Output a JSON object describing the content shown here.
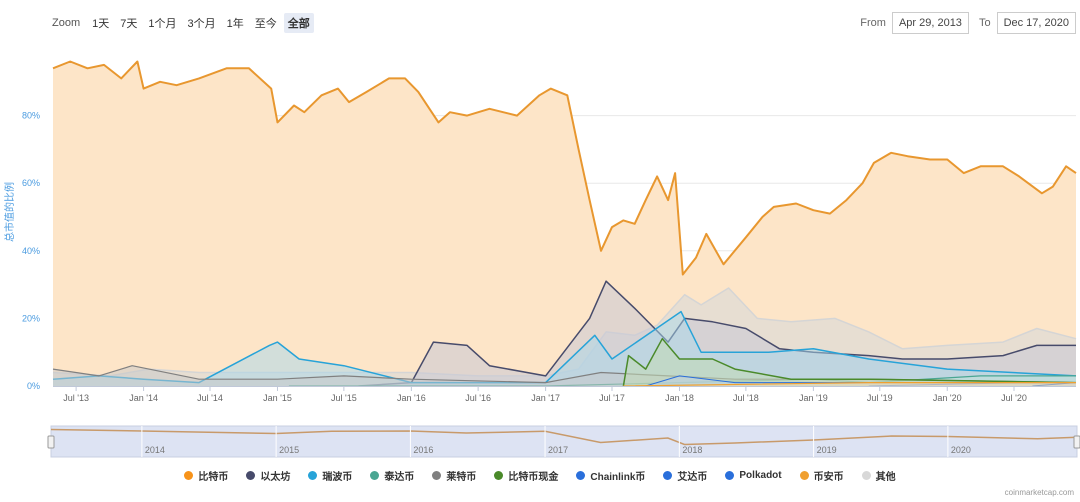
{
  "toolbar": {
    "zoom_label": "Zoom",
    "buttons": [
      "1天",
      "7天",
      "1个月",
      "3个月",
      "1年",
      "至今",
      "全部"
    ],
    "active": "全部",
    "from_label": "From",
    "from_value": "Apr 29, 2013",
    "to_label": "To",
    "to_value": "Dec 17, 2020"
  },
  "credits": "coinmarketcap.com",
  "colors": {
    "bitcoin": "#f7931a",
    "bitcoin_line": "#e8972f",
    "ethereum": "#474b6b",
    "ripple": "#27a3d8",
    "tether": "#4aa692",
    "litecoin": "#808080",
    "bch": "#4a8a2a",
    "chainlink": "#2a6fdb",
    "cardano": "#2a6fdb",
    "polkadot": "#2a6fdb",
    "binance": "#f0a030",
    "others": "#d8d8d8",
    "navigator_bg": "#dde3f3",
    "grid": "#e8e8e8",
    "axis_text": "#666666",
    "y_label": "#4a9be0"
  },
  "chart_data": {
    "type": "area",
    "ylabel": "总市值的比例",
    "ylim": [
      0,
      100
    ],
    "y_ticks": [
      0,
      20,
      40,
      60,
      80
    ],
    "y_tick_labels": [
      "0%",
      "20%",
      "40%",
      "60%",
      "80%"
    ],
    "x_range": [
      "2013-04-29",
      "2020-12-17"
    ],
    "x_tick_labels": [
      "Jul '13",
      "Jan '14",
      "Jul '14",
      "Jan '15",
      "Jul '15",
      "Jan '16",
      "Jul '16",
      "Jan '17",
      "Jul '17",
      "Jan '18",
      "Jul '18",
      "Jan '19",
      "Jul '19",
      "Jan '20",
      "Jul '20"
    ],
    "x_tick_dates": [
      "2013-07-01",
      "2014-01-01",
      "2014-07-01",
      "2015-01-01",
      "2015-07-01",
      "2016-01-01",
      "2016-07-01",
      "2017-01-01",
      "2017-07-01",
      "2018-01-01",
      "2018-07-01",
      "2019-01-01",
      "2019-07-01",
      "2020-01-01",
      "2020-07-01"
    ],
    "navigator_labels": [
      "2014",
      "2015",
      "2016",
      "2017",
      "2018",
      "2019",
      "2020"
    ],
    "navigator_dates": [
      "2014-01-01",
      "2015-01-01",
      "2016-01-01",
      "2017-01-01",
      "2018-01-01",
      "2019-01-01",
      "2020-01-01"
    ],
    "series": [
      {
        "key": "others",
        "name": "其他",
        "points": [
          [
            "2013-04-29",
            4
          ],
          [
            "2013-10-01",
            3
          ],
          [
            "2014-01-15",
            5
          ],
          [
            "2014-06-01",
            4
          ],
          [
            "2015-01-01",
            4
          ],
          [
            "2015-07-01",
            4
          ],
          [
            "2016-01-01",
            4
          ],
          [
            "2016-07-01",
            3
          ],
          [
            "2017-01-01",
            3
          ],
          [
            "2017-04-01",
            5
          ],
          [
            "2017-06-15",
            16
          ],
          [
            "2017-09-01",
            15
          ],
          [
            "2017-11-01",
            18
          ],
          [
            "2018-01-15",
            27
          ],
          [
            "2018-03-01",
            24
          ],
          [
            "2018-05-15",
            29
          ],
          [
            "2018-08-01",
            20
          ],
          [
            "2018-11-01",
            19
          ],
          [
            "2019-03-01",
            20
          ],
          [
            "2019-06-01",
            16
          ],
          [
            "2019-09-01",
            11
          ],
          [
            "2020-01-01",
            12
          ],
          [
            "2020-06-01",
            13
          ],
          [
            "2020-09-01",
            17
          ],
          [
            "2020-12-17",
            14
          ]
        ]
      },
      {
        "key": "ethereum",
        "name": "以太坊",
        "points": [
          [
            "2015-08-10",
            0
          ],
          [
            "2016-01-01",
            1
          ],
          [
            "2016-03-01",
            13
          ],
          [
            "2016-06-01",
            12
          ],
          [
            "2016-08-01",
            6
          ],
          [
            "2017-01-01",
            3
          ],
          [
            "2017-05-01",
            20
          ],
          [
            "2017-06-15",
            31
          ],
          [
            "2017-09-01",
            23
          ],
          [
            "2017-12-01",
            13
          ],
          [
            "2018-01-15",
            20
          ],
          [
            "2018-04-01",
            19
          ],
          [
            "2018-07-01",
            17
          ],
          [
            "2018-10-01",
            11
          ],
          [
            "2019-01-01",
            10
          ],
          [
            "2019-06-01",
            9
          ],
          [
            "2019-09-01",
            8
          ],
          [
            "2020-01-01",
            8
          ],
          [
            "2020-06-01",
            9
          ],
          [
            "2020-09-01",
            12
          ],
          [
            "2020-12-17",
            12
          ]
        ]
      },
      {
        "key": "ripple",
        "name": "瑞波币",
        "points": [
          [
            "2013-04-29",
            2
          ],
          [
            "2013-09-01",
            3
          ],
          [
            "2014-01-01",
            2
          ],
          [
            "2014-06-01",
            1
          ],
          [
            "2014-12-10",
            12
          ],
          [
            "2015-01-01",
            13
          ],
          [
            "2015-03-01",
            8
          ],
          [
            "2015-07-01",
            6
          ],
          [
            "2016-01-01",
            1
          ],
          [
            "2017-01-01",
            1
          ],
          [
            "2017-05-15",
            15
          ],
          [
            "2017-07-01",
            8
          ],
          [
            "2018-01-05",
            22
          ],
          [
            "2018-03-01",
            10
          ],
          [
            "2018-09-01",
            10
          ],
          [
            "2019-01-01",
            11
          ],
          [
            "2019-06-01",
            8
          ],
          [
            "2020-01-01",
            5
          ],
          [
            "2020-12-17",
            3
          ]
        ]
      },
      {
        "key": "tether",
        "name": "泰达币",
        "points": [
          [
            "2015-02-01",
            0
          ],
          [
            "2017-01-01",
            0
          ],
          [
            "2018-01-01",
            1
          ],
          [
            "2019-01-01",
            2
          ],
          [
            "2019-06-01",
            1
          ],
          [
            "2020-04-01",
            3
          ],
          [
            "2020-12-17",
            3
          ]
        ]
      },
      {
        "key": "litecoin",
        "name": "莱特币",
        "points": [
          [
            "2013-04-29",
            5
          ],
          [
            "2013-09-01",
            3
          ],
          [
            "2013-12-01",
            6
          ],
          [
            "2014-06-01",
            2
          ],
          [
            "2015-01-01",
            2
          ],
          [
            "2015-07-01",
            3
          ],
          [
            "2016-01-01",
            2
          ],
          [
            "2017-01-01",
            1
          ],
          [
            "2017-06-01",
            4
          ],
          [
            "2017-12-01",
            3
          ],
          [
            "2018-06-01",
            2
          ],
          [
            "2019-06-01",
            2
          ],
          [
            "2020-12-17",
            1
          ]
        ]
      },
      {
        "key": "bch",
        "name": "比特币现金",
        "points": [
          [
            "2017-08-01",
            0
          ],
          [
            "2017-08-15",
            9
          ],
          [
            "2017-10-01",
            5
          ],
          [
            "2017-11-15",
            14
          ],
          [
            "2018-01-01",
            8
          ],
          [
            "2018-04-01",
            8
          ],
          [
            "2018-06-01",
            5
          ],
          [
            "2018-11-01",
            2
          ],
          [
            "2019-06-01",
            2
          ],
          [
            "2020-12-17",
            1
          ]
        ]
      },
      {
        "key": "chainlink",
        "name": "Chainlink币",
        "points": [
          [
            "2019-06-01",
            0
          ],
          [
            "2020-08-01",
            1
          ],
          [
            "2020-12-17",
            1
          ]
        ]
      },
      {
        "key": "cardano",
        "name": "艾达币",
        "points": [
          [
            "2017-10-01",
            0
          ],
          [
            "2018-01-01",
            3
          ],
          [
            "2018-06-01",
            1
          ],
          [
            "2020-12-17",
            1
          ]
        ]
      },
      {
        "key": "polkadot",
        "name": "Polkadot",
        "points": [
          [
            "2020-08-20",
            0
          ],
          [
            "2020-12-17",
            1
          ]
        ]
      },
      {
        "key": "binance",
        "name": "币安币",
        "points": [
          [
            "2017-08-01",
            0
          ],
          [
            "2019-06-01",
            1
          ],
          [
            "2020-12-17",
            1
          ]
        ]
      },
      {
        "key": "bitcoin",
        "name": "比特币",
        "points": [
          [
            "2013-04-29",
            94
          ],
          [
            "2013-06-15",
            96
          ],
          [
            "2013-08-01",
            94
          ],
          [
            "2013-09-15",
            95
          ],
          [
            "2013-11-01",
            91
          ],
          [
            "2013-12-15",
            96
          ],
          [
            "2014-01-01",
            88
          ],
          [
            "2014-02-15",
            90
          ],
          [
            "2014-04-01",
            89
          ],
          [
            "2014-06-01",
            91
          ],
          [
            "2014-08-15",
            94
          ],
          [
            "2014-10-15",
            94
          ],
          [
            "2014-12-15",
            88
          ],
          [
            "2015-01-01",
            78
          ],
          [
            "2015-02-15",
            83
          ],
          [
            "2015-03-15",
            81
          ],
          [
            "2015-05-01",
            86
          ],
          [
            "2015-06-15",
            88
          ],
          [
            "2015-07-15",
            84
          ],
          [
            "2015-09-01",
            87
          ],
          [
            "2015-11-01",
            91
          ],
          [
            "2015-12-15",
            91
          ],
          [
            "2016-01-20",
            87
          ],
          [
            "2016-03-15",
            78
          ],
          [
            "2016-04-15",
            81
          ],
          [
            "2016-06-01",
            80
          ],
          [
            "2016-08-01",
            82
          ],
          [
            "2016-10-15",
            80
          ],
          [
            "2016-12-15",
            86
          ],
          [
            "2017-01-15",
            88
          ],
          [
            "2017-03-01",
            86
          ],
          [
            "2017-04-01",
            70
          ],
          [
            "2017-05-01",
            55
          ],
          [
            "2017-06-01",
            40
          ],
          [
            "2017-07-01",
            47
          ],
          [
            "2017-08-01",
            49
          ],
          [
            "2017-09-01",
            48
          ],
          [
            "2017-10-01",
            55
          ],
          [
            "2017-11-01",
            62
          ],
          [
            "2017-12-01",
            55
          ],
          [
            "2017-12-20",
            63
          ],
          [
            "2018-01-10",
            33
          ],
          [
            "2018-02-15",
            38
          ],
          [
            "2018-03-15",
            45
          ],
          [
            "2018-05-01",
            36
          ],
          [
            "2018-07-01",
            44
          ],
          [
            "2018-08-15",
            50
          ],
          [
            "2018-09-15",
            53
          ],
          [
            "2018-11-15",
            54
          ],
          [
            "2019-01-01",
            52
          ],
          [
            "2019-02-15",
            51
          ],
          [
            "2019-04-01",
            55
          ],
          [
            "2019-05-15",
            60
          ],
          [
            "2019-06-15",
            66
          ],
          [
            "2019-08-01",
            69
          ],
          [
            "2019-09-15",
            68
          ],
          [
            "2019-11-15",
            67
          ],
          [
            "2020-01-01",
            67
          ],
          [
            "2020-02-15",
            63
          ],
          [
            "2020-04-01",
            65
          ],
          [
            "2020-06-01",
            65
          ],
          [
            "2020-07-15",
            62
          ],
          [
            "2020-09-15",
            57
          ],
          [
            "2020-10-15",
            59
          ],
          [
            "2020-11-20",
            65
          ],
          [
            "2020-12-17",
            63
          ]
        ]
      }
    ],
    "navigator_series": [
      [
        "2013-04-29",
        94
      ],
      [
        "2014-01-01",
        88
      ],
      [
        "2015-01-01",
        78
      ],
      [
        "2015-06-01",
        87
      ],
      [
        "2016-01-01",
        88
      ],
      [
        "2016-06-01",
        80
      ],
      [
        "2017-01-01",
        87
      ],
      [
        "2017-06-01",
        42
      ],
      [
        "2017-12-01",
        60
      ],
      [
        "2018-01-15",
        34
      ],
      [
        "2018-06-01",
        40
      ],
      [
        "2019-01-01",
        52
      ],
      [
        "2019-08-01",
        68
      ],
      [
        "2020-01-01",
        66
      ],
      [
        "2020-09-01",
        57
      ],
      [
        "2020-12-17",
        63
      ]
    ]
  }
}
